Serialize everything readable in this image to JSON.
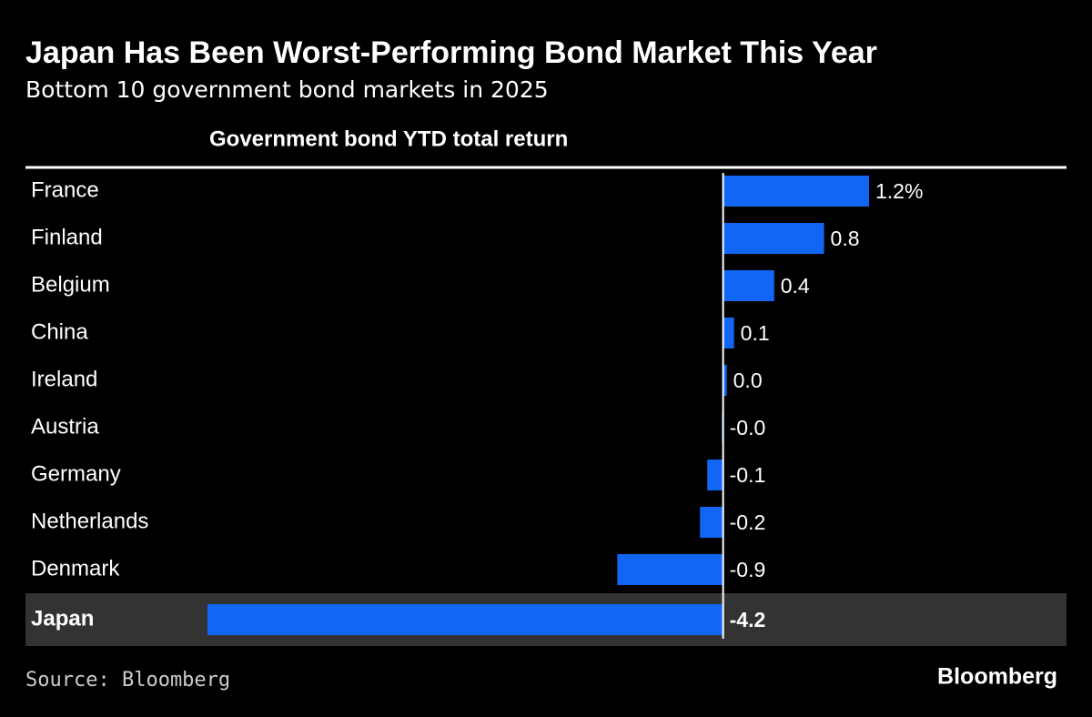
{
  "chart_data": {
    "type": "hbar",
    "title": "Japan Has Been Worst-Performing Bond Market This Year",
    "subtitle": "Bottom 10 government bond markets in 2025",
    "axis_title": "Government bond YTD total return",
    "categories": [
      "France",
      "Finland",
      "Belgium",
      "China",
      "Ireland",
      "Austria",
      "Germany",
      "Netherlands",
      "Denmark",
      "Japan"
    ],
    "values": [
      1.2,
      0.83,
      0.42,
      0.09,
      0.03,
      -0.01,
      -0.13,
      -0.19,
      -0.87,
      -4.24
    ],
    "value_labels": [
      "1.2%",
      "0.8",
      "0.4",
      "0.1",
      "0.0",
      "-0.0",
      "-0.1",
      "-0.2",
      "-0.9",
      "-4.2"
    ],
    "color": "#1166f5",
    "highlight": 9,
    "source": "Source: Bloomberg",
    "brand": "Bloomberg"
  }
}
